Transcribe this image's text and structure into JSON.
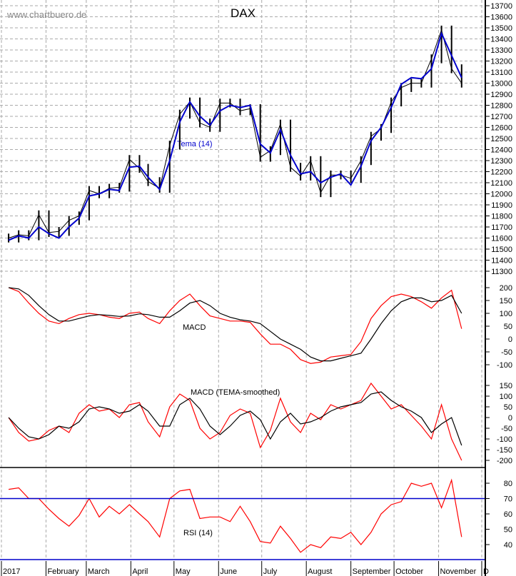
{
  "watermark": "www.chartbuero.de",
  "chart_data": [
    {
      "type": "line",
      "title": "DAX",
      "dates": [
        "2017-01-06",
        "2017-01-13",
        "2017-01-20",
        "2017-01-27",
        "2017-02-03",
        "2017-02-10",
        "2017-02-17",
        "2017-02-24",
        "2017-03-03",
        "2017-03-10",
        "2017-03-17",
        "2017-03-24",
        "2017-03-31",
        "2017-04-07",
        "2017-04-13",
        "2017-04-21",
        "2017-04-28",
        "2017-05-05",
        "2017-05-12",
        "2017-05-19",
        "2017-05-26",
        "2017-06-02",
        "2017-06-09",
        "2017-06-16",
        "2017-06-23",
        "2017-06-30",
        "2017-07-07",
        "2017-07-14",
        "2017-07-21",
        "2017-07-28",
        "2017-08-04",
        "2017-08-11",
        "2017-08-18",
        "2017-08-25",
        "2017-09-01",
        "2017-09-08",
        "2017-09-15",
        "2017-09-22",
        "2017-09-29",
        "2017-10-06",
        "2017-10-13",
        "2017-10-20",
        "2017-10-27",
        "2017-11-03",
        "2017-11-10",
        "2017-11-17"
      ],
      "series": [
        {
          "key": "price",
          "color": "#000000",
          "values": [
            11600,
            11630,
            11620,
            11810,
            11650,
            11660,
            11760,
            11800,
            12030,
            12000,
            12050,
            12060,
            12310,
            12230,
            12110,
            12050,
            12440,
            12720,
            12830,
            12640,
            12600,
            12820,
            12820,
            12750,
            12770,
            12330,
            12390,
            12630,
            12240,
            12160,
            12300,
            12010,
            12170,
            12170,
            12140,
            12300,
            12520,
            12590,
            12830,
            12960,
            13000,
            13000,
            13220,
            13480,
            13130,
            13000
          ]
        },
        {
          "key": "tema",
          "name": "Tema (14)",
          "color": "#0000cc",
          "values": [
            11580,
            11620,
            11600,
            11700,
            11640,
            11600,
            11700,
            11780,
            11980,
            12000,
            12040,
            12030,
            12240,
            12250,
            12150,
            12040,
            12300,
            12650,
            12830,
            12700,
            12620,
            12750,
            12800,
            12780,
            12800,
            12450,
            12370,
            12580,
            12350,
            12180,
            12200,
            12100,
            12150,
            12180,
            12080,
            12250,
            12480,
            12600,
            12780,
            12990,
            13050,
            13040,
            13130,
            13450,
            13250,
            13050
          ]
        }
      ],
      "ylim": [
        11300,
        13700
      ],
      "yticks": [
        11300,
        11400,
        11500,
        11600,
        11700,
        11800,
        11900,
        12000,
        12100,
        12200,
        12300,
        12400,
        12500,
        12600,
        12700,
        12800,
        12900,
        13000,
        13100,
        13200,
        13300,
        13400,
        13500,
        13600,
        13700
      ],
      "grid": true
    },
    {
      "type": "line",
      "title": "MACD",
      "series": [
        {
          "key": "macd",
          "color": "#ff0000",
          "values": [
            200,
            185,
            140,
            100,
            70,
            60,
            80,
            95,
            100,
            95,
            85,
            80,
            100,
            105,
            80,
            60,
            110,
            150,
            175,
            130,
            90,
            80,
            70,
            70,
            65,
            20,
            -20,
            -20,
            -40,
            -80,
            -95,
            -90,
            -70,
            -65,
            -60,
            -10,
            80,
            130,
            165,
            175,
            165,
            145,
            120,
            160,
            190,
            40
          ]
        },
        {
          "key": "signal",
          "color": "#000000",
          "values": [
            200,
            195,
            170,
            130,
            95,
            70,
            70,
            80,
            90,
            95,
            92,
            88,
            90,
            98,
            95,
            85,
            85,
            110,
            140,
            150,
            130,
            100,
            85,
            75,
            70,
            60,
            30,
            0,
            -20,
            -40,
            -70,
            -85,
            -85,
            -75,
            -65,
            -55,
            0,
            60,
            110,
            145,
            160,
            160,
            145,
            150,
            170,
            100
          ]
        }
      ],
      "ylim": [
        -110,
        210
      ],
      "yticks": [
        200,
        150,
        100,
        50,
        0,
        -50,
        -100
      ]
    },
    {
      "type": "line",
      "title": "MACD (TEMA-smoothed)",
      "series": [
        {
          "key": "macd",
          "color": "#ff0000",
          "values": [
            0,
            -70,
            -110,
            -100,
            -60,
            -40,
            -70,
            20,
            60,
            30,
            40,
            0,
            60,
            70,
            -20,
            -90,
            50,
            110,
            80,
            -50,
            -100,
            -70,
            10,
            40,
            20,
            -140,
            -60,
            90,
            -20,
            -70,
            20,
            -10,
            60,
            40,
            60,
            80,
            160,
            100,
            40,
            60,
            10,
            -40,
            -100,
            60,
            -100,
            -200
          ]
        },
        {
          "key": "signal",
          "color": "#000000",
          "values": [
            0,
            -50,
            -90,
            -100,
            -80,
            -40,
            -50,
            -20,
            40,
            50,
            40,
            20,
            30,
            60,
            30,
            -40,
            -40,
            60,
            90,
            40,
            -40,
            -80,
            -40,
            10,
            30,
            -10,
            -100,
            -20,
            20,
            -30,
            -20,
            0,
            30,
            50,
            60,
            70,
            110,
            120,
            80,
            50,
            30,
            0,
            -70,
            -30,
            0,
            -130
          ]
        }
      ],
      "ylim": [
        -210,
        160
      ],
      "yticks": [
        150,
        100,
        50,
        0,
        -50,
        -100,
        -150,
        -200
      ]
    },
    {
      "type": "line",
      "title": "RSI (14)",
      "series": [
        {
          "key": "rsi",
          "color": "#ff0000",
          "values": [
            76,
            77,
            70,
            70,
            63,
            57,
            52,
            59,
            70,
            58,
            65,
            60,
            66,
            60,
            55,
            45,
            70,
            75,
            76,
            57,
            58,
            58,
            55,
            65,
            55,
            42,
            41,
            52,
            44,
            35,
            40,
            38,
            45,
            44,
            48,
            40,
            48,
            60,
            66,
            68,
            80,
            78,
            80,
            64,
            82,
            45
          ]
        }
      ],
      "ylim": [
        30,
        90
      ],
      "yticks": [
        80,
        70,
        60,
        50,
        40
      ],
      "reference_lines": [
        70,
        30
      ]
    }
  ],
  "x_axis": {
    "labels": [
      "2017",
      "February",
      "March",
      "April",
      "May",
      "June",
      "July",
      "August",
      "September",
      "October",
      "November",
      "D"
    ],
    "label_dates": [
      "2017-01-01",
      "2017-02-01",
      "2017-03-01",
      "2017-04-01",
      "2017-05-01",
      "2017-06-01",
      "2017-07-01",
      "2017-08-01",
      "2017-09-01",
      "2017-10-01",
      "2017-11-01",
      "2017-12-01"
    ]
  }
}
